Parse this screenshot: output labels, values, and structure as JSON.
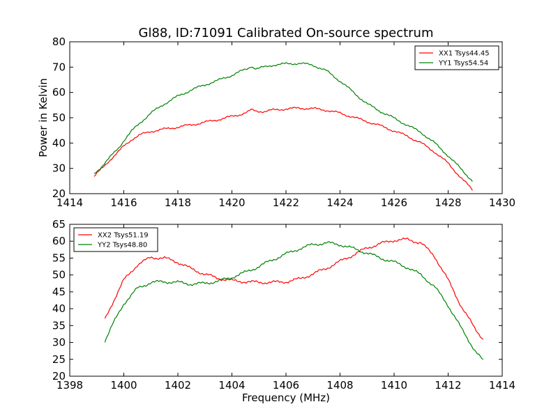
{
  "figure": {
    "title": "Gl88, ID:71091 Calibrated On-source spectrum",
    "xlabel": "Frequency (MHz)"
  },
  "chart_data": [
    {
      "type": "line",
      "title": "Gl88, ID:71091 Calibrated On-source spectrum",
      "xlabel": "",
      "ylabel": "Power in Kelvin",
      "xlim": [
        1414,
        1430
      ],
      "ylim": [
        20,
        80
      ],
      "xticks": [
        1414,
        1416,
        1418,
        1420,
        1422,
        1424,
        1426,
        1428,
        1430
      ],
      "yticks": [
        20,
        30,
        40,
        50,
        60,
        70,
        80
      ],
      "legend_position": "top-right",
      "series": [
        {
          "name": "XX1 Tsys44.45",
          "color": "#ff0000",
          "x": [
            1414.9,
            1415.2,
            1415.5,
            1415.8,
            1416.0,
            1416.3,
            1416.6,
            1417.0,
            1417.5,
            1418.0,
            1418.5,
            1419.0,
            1419.5,
            1420.0,
            1420.3,
            1420.6,
            1420.7,
            1420.9,
            1421.2,
            1421.5,
            1422.0,
            1422.5,
            1423.0,
            1423.5,
            1424.0,
            1424.5,
            1425.0,
            1425.5,
            1426.0,
            1426.5,
            1427.0,
            1427.5,
            1428.0,
            1428.5,
            1428.9
          ],
          "y": [
            26.8,
            30.0,
            33.5,
            36.5,
            38.8,
            41.5,
            43.2,
            44.6,
            45.5,
            46.3,
            47.2,
            48.2,
            49.3,
            50.5,
            51.3,
            52.3,
            53.1,
            52.6,
            52.5,
            53.0,
            53.5,
            53.8,
            53.6,
            53.0,
            51.8,
            50.2,
            48.5,
            46.8,
            44.8,
            42.7,
            40.0,
            36.5,
            32.0,
            26.0,
            21.5
          ]
        },
        {
          "name": "YY1 Tsys54.54",
          "color": "#008000",
          "x": [
            1414.9,
            1415.2,
            1415.5,
            1415.8,
            1416.0,
            1416.3,
            1416.6,
            1417.0,
            1417.5,
            1418.0,
            1418.5,
            1419.0,
            1419.5,
            1420.0,
            1420.3,
            1420.6,
            1420.7,
            1420.9,
            1421.2,
            1421.5,
            1422.0,
            1422.5,
            1423.0,
            1423.5,
            1424.0,
            1424.5,
            1425.0,
            1425.5,
            1426.0,
            1426.5,
            1427.0,
            1427.5,
            1428.0,
            1428.5,
            1428.9
          ],
          "y": [
            27.8,
            31.0,
            34.5,
            38.0,
            41.0,
            44.8,
            48.0,
            51.8,
            55.5,
            58.5,
            61.0,
            63.0,
            64.8,
            66.8,
            68.2,
            69.5,
            70.5,
            69.3,
            70.0,
            70.8,
            71.3,
            71.5,
            70.8,
            68.5,
            64.5,
            60.0,
            55.5,
            52.5,
            49.8,
            47.0,
            44.2,
            40.0,
            35.0,
            29.5,
            25.0
          ]
        }
      ]
    },
    {
      "type": "line",
      "xlabel": "Frequency (MHz)",
      "ylabel": "",
      "xlim": [
        1398,
        1414
      ],
      "ylim": [
        20,
        65
      ],
      "xticks": [
        1398,
        1400,
        1402,
        1404,
        1406,
        1408,
        1410,
        1412,
        1414
      ],
      "yticks": [
        20,
        25,
        30,
        35,
        40,
        45,
        50,
        55,
        60,
        65
      ],
      "legend_position": "top-left",
      "series": [
        {
          "name": "XX2 Tsys51.19",
          "color": "#ff0000",
          "x": [
            1399.3,
            1399.6,
            1400.0,
            1400.5,
            1401.0,
            1401.5,
            1402.0,
            1402.5,
            1403.0,
            1403.5,
            1404.0,
            1404.5,
            1405.0,
            1405.5,
            1406.0,
            1406.5,
            1407.0,
            1407.5,
            1408.0,
            1408.5,
            1409.0,
            1409.5,
            1410.0,
            1410.5,
            1411.0,
            1411.5,
            1412.0,
            1412.5,
            1413.0,
            1413.3
          ],
          "y": [
            36.8,
            42.0,
            48.5,
            53.0,
            55.2,
            55.0,
            53.8,
            51.8,
            50.2,
            49.0,
            48.3,
            48.0,
            47.8,
            47.8,
            48.0,
            48.8,
            50.3,
            52.0,
            54.0,
            56.0,
            58.0,
            59.3,
            60.3,
            60.5,
            59.5,
            55.5,
            48.5,
            40.5,
            34.0,
            31.0
          ]
        },
        {
          "name": "YY2 Tsys48.80",
          "color": "#008000",
          "x": [
            1399.3,
            1399.6,
            1400.0,
            1400.5,
            1401.0,
            1401.5,
            1402.0,
            1402.5,
            1403.0,
            1403.5,
            1404.0,
            1404.5,
            1405.0,
            1405.5,
            1406.0,
            1406.5,
            1407.0,
            1407.5,
            1408.0,
            1408.5,
            1409.0,
            1409.5,
            1410.0,
            1410.5,
            1411.0,
            1411.5,
            1412.0,
            1412.5,
            1413.0,
            1413.3
          ],
          "y": [
            30.5,
            35.5,
            41.5,
            46.0,
            47.8,
            48.0,
            47.8,
            47.3,
            47.5,
            48.2,
            49.3,
            50.8,
            52.5,
            54.5,
            56.2,
            57.8,
            59.0,
            59.5,
            59.0,
            57.8,
            56.5,
            55.0,
            53.8,
            52.2,
            50.0,
            46.5,
            41.0,
            34.0,
            27.5,
            24.5
          ]
        }
      ]
    }
  ]
}
